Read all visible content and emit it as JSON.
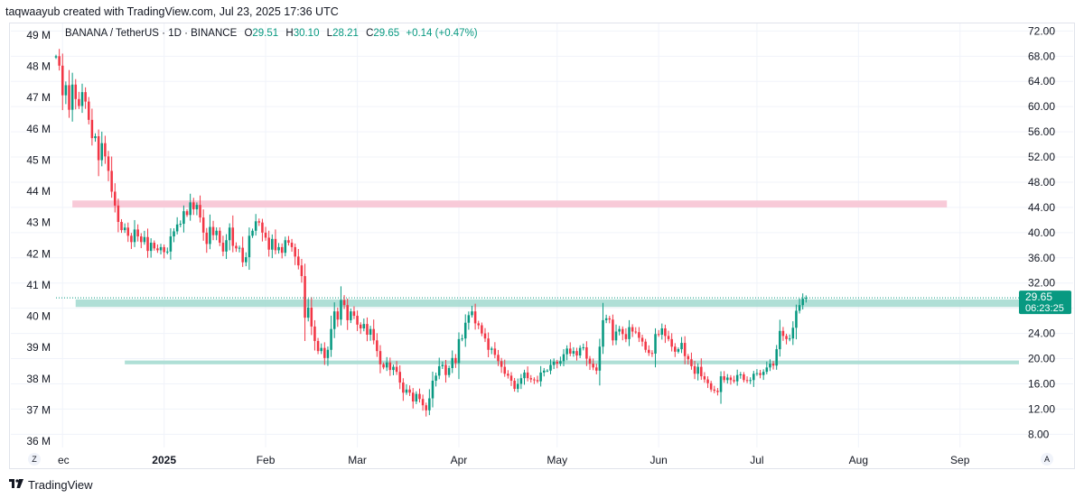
{
  "caption": "taqwaayub created with TradingView.com, Jul 23, 2025 17:36 UTC",
  "legend": {
    "symbol": "BANANA / TetherUS · 1D · BINANCE",
    "open_label": "O",
    "open": "29.51",
    "high_label": "H",
    "high": "30.10",
    "low_label": "L",
    "low": "28.21",
    "close_label": "C",
    "close": "29.65",
    "change": "+0.14 (+0.47%)"
  },
  "price_tag": {
    "price": "29.65",
    "countdown": "06:23:25"
  },
  "axis_buttons": {
    "left": "Z",
    "right": "A"
  },
  "footer": {
    "brand": "TradingView"
  },
  "colors": {
    "up": "#089981",
    "down": "#f23645",
    "resistance_zone": "#f7c4d4",
    "support_zone": "#a6dcd2",
    "price_tag": "#089981",
    "grid": "#f0f3fa"
  },
  "chart_data": {
    "type": "candlestick",
    "price_axis": {
      "ticks": [
        "72.00",
        "68.00",
        "64.00",
        "60.00",
        "56.00",
        "52.00",
        "48.00",
        "44.00",
        "40.00",
        "36.00",
        "32.00",
        "28.00",
        "24.00",
        "20.00",
        "16.00",
        "12.00",
        "8.00"
      ],
      "range": [
        5.9,
        73.2
      ]
    },
    "volume_axis": {
      "ticks": [
        "49 M",
        "48 M",
        "47 M",
        "46 M",
        "45 M",
        "44 M",
        "43 M",
        "42 M",
        "41 M",
        "40 M",
        "39 M",
        "38 M",
        "37 M",
        "36 M"
      ]
    },
    "time_axis": {
      "ticks": [
        "Dec",
        "2025",
        "Feb",
        "Mar",
        "Apr",
        "May",
        "Jun",
        "Jul",
        "Aug",
        "Sep"
      ],
      "visible_labels": [
        "ec",
        "2025",
        "Feb",
        "Mar",
        "Apr",
        "May",
        "Jun",
        "Jul",
        "Aug",
        "Sep"
      ],
      "bold": [
        "2025"
      ],
      "start": "2024-11-29",
      "end": "2025-09-19"
    },
    "zones": [
      {
        "name": "resistance",
        "from": "2024-12-04",
        "to": "2025-08-28",
        "low": 44.0,
        "high": 45.1
      },
      {
        "name": "support-upper",
        "from": "2024-12-05",
        "to": "2025-09-19",
        "low": 28.2,
        "high": 29.4
      },
      {
        "name": "support-lower",
        "from": "2024-12-20",
        "to": "2025-09-19",
        "low": 19.1,
        "high": 19.7
      }
    ],
    "closes": [
      68.0,
      66.5,
      61.8,
      63.4,
      59.5,
      63.5,
      61.2,
      60.1,
      62.3,
      60.8,
      57.9,
      55.0,
      55.3,
      51.5,
      54.2,
      52.1,
      49.8,
      46.5,
      44.3,
      41.7,
      40.4,
      40.8,
      39.5,
      38.5,
      40.5,
      39.4,
      38.5,
      39.3,
      37.1,
      38.4,
      37.5,
      37.2,
      37.7,
      36.9,
      37.0,
      39.4,
      40.2,
      41.3,
      41.4,
      43.4,
      42.8,
      44.8,
      43.7,
      44.4,
      42.4,
      40.0,
      38.2,
      40.9,
      39.6,
      40.3,
      38.4,
      37.0,
      38.8,
      40.8,
      37.9,
      37.5,
      37.6,
      35.3,
      36.1,
      39.5,
      40.3,
      41.8,
      41.6,
      40.0,
      39.2,
      37.3,
      39.0,
      37.2,
      37.7,
      36.8,
      38.8,
      38.4,
      37.7,
      36.2,
      34.8,
      33.1,
      26.5,
      28.1,
      25.1,
      22.8,
      21.2,
      21.7,
      20.1,
      21.4,
      24.7,
      27.5,
      26.2,
      29.3,
      28.5,
      26.1,
      27.5,
      26.8,
      25.4,
      24.8,
      25.5,
      23.8,
      24.7,
      22.9,
      21.2,
      19.1,
      18.6,
      19.4,
      18.2,
      18.7,
      17.9,
      16.2,
      14.6,
      15.1,
      14.6,
      13.2,
      14.4,
      13.6,
      12.6,
      11.8,
      13.7,
      16.5,
      17.3,
      18.8,
      19.0,
      17.4,
      18.5,
      20.1,
      19.3,
      23.1,
      23.2,
      25.7,
      26.9,
      27.5,
      25.6,
      25.3,
      24.0,
      23.2,
      21.4,
      21.6,
      20.6,
      19.6,
      18.7,
      17.6,
      17.3,
      16.5,
      15.2,
      16.0,
      16.9,
      17.8,
      16.9,
      16.7,
      16.6,
      16.4,
      17.8,
      18.1,
      18.1,
      19.0,
      19.5,
      19.2,
      19.6,
      20.7,
      21.6,
      20.8,
      21.2,
      20.5,
      21.7,
      21.8,
      20.0,
      19.2,
      18.6,
      18.1,
      21.9,
      26.1,
      26.4,
      26.2,
      22.9,
      24.3,
      24.7,
      23.9,
      23.1,
      25.0,
      24.3,
      24.2,
      23.3,
      22.7,
      21.4,
      20.9,
      20.8,
      23.9,
      23.8,
      24.8,
      23.6,
      23.1,
      21.9,
      21.1,
      21.5,
      22.5,
      20.4,
      19.9,
      18.8,
      17.6,
      18.7,
      17.2,
      16.7,
      16.1,
      15.1,
      14.9,
      14.7,
      17.2,
      16.6,
      17.0,
      16.6,
      16.4,
      17.4,
      17.5,
      16.6,
      16.5,
      16.6,
      17.6,
      17.7,
      17.4,
      17.9,
      18.6,
      19.2,
      18.9,
      21.5,
      24.4,
      23.6,
      23.1,
      23.2,
      24.9,
      27.6,
      28.5,
      29.5,
      29.65
    ]
  }
}
